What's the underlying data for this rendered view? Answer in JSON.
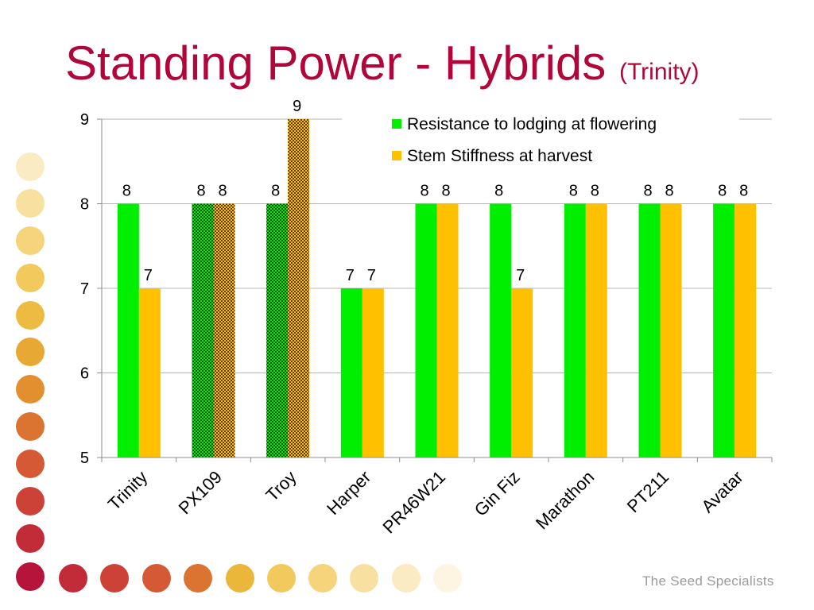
{
  "slide": {
    "title_main": "Standing Power - Hybrids",
    "title_sub": "(Trinity)",
    "brand_text": "The Seed Specialists"
  },
  "colors": {
    "title": "#b0063a",
    "series1": "#00ee00",
    "series2": "#ffc000",
    "hatched_dark": "#0a4a0a"
  },
  "chart_data": {
    "type": "bar",
    "categories": [
      "Trinity",
      "PX109",
      "Troy",
      "Harper",
      "PR46W21",
      "Gin Fiz",
      "Marathon",
      "PT211",
      "Avatar"
    ],
    "series": [
      {
        "name": "Resistance to lodging at flowering",
        "values": [
          8,
          8,
          8,
          7,
          8,
          8,
          8,
          8,
          8
        ],
        "color": "#00ee00"
      },
      {
        "name": "Stem Stiffness at harvest",
        "values": [
          7,
          8,
          9,
          7,
          8,
          7,
          8,
          8,
          8
        ],
        "color": "#ffc000"
      }
    ],
    "hatched_categories": [
      "PX109",
      "Troy"
    ],
    "ylim": [
      5,
      9
    ],
    "yticks": [
      5,
      6,
      7,
      8,
      9
    ],
    "gridlines": true,
    "data_labels": true,
    "legend_position": "top-right",
    "xlabel": "",
    "ylabel": ""
  }
}
